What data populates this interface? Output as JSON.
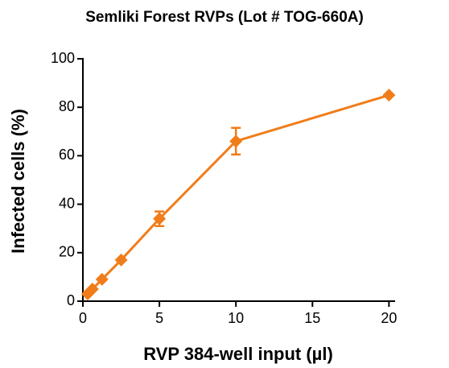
{
  "chart_data": {
    "type": "line",
    "title": "Semliki Forest RVPs (Lot # TOG-660A)",
    "x_label": "RVP 384-well input (µl)",
    "y_label": "Infected cells (%)",
    "x": [
      0.3125,
      0.625,
      1.25,
      2.5,
      5,
      10,
      20
    ],
    "series": [
      {
        "color": "#f07d1a",
        "values": [
          3,
          5,
          9,
          17,
          34,
          66,
          85
        ],
        "errors": [
          null,
          null,
          null,
          null,
          3,
          5.5,
          null
        ]
      }
    ],
    "xlim": [
      0,
      20.4
    ],
    "xticks": [
      0,
      5,
      10,
      15,
      20
    ],
    "ylim": [
      0,
      100
    ],
    "yticks": [
      0,
      20,
      40,
      60,
      80,
      100
    ]
  }
}
